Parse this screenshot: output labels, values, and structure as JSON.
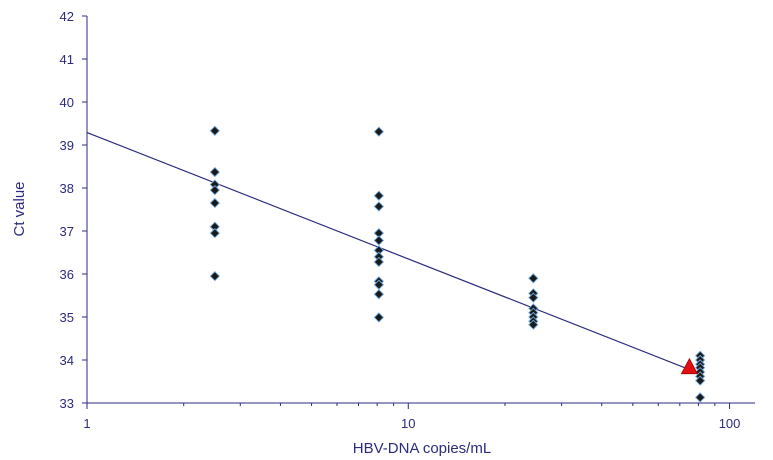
{
  "chart_data": {
    "type": "scatter",
    "title": "",
    "xlabel": "HBV-DNA copies/mL",
    "ylabel": "Ct value",
    "x_scale": "log",
    "xlim": [
      1,
      120
    ],
    "ylim": [
      33,
      42
    ],
    "x_ticks": [
      1,
      10,
      100
    ],
    "x_tick_labels": [
      "1",
      "10",
      "100"
    ],
    "y_ticks": [
      33,
      34,
      35,
      36,
      37,
      38,
      39,
      40,
      41,
      42
    ],
    "y_tick_labels": [
      "33",
      "34",
      "35",
      "36",
      "37",
      "38",
      "39",
      "40",
      "41",
      "42"
    ],
    "grid": false,
    "colors": {
      "axis": "#2b2b80",
      "marker": "#1a1a1a",
      "marker_edge": "#6fa8dc",
      "trend": "#2b2b80",
      "highlight": "#e01010"
    },
    "series": [
      {
        "marker": "diamond",
        "points": [
          {
            "x": 2.5,
            "y": 39.33
          },
          {
            "x": 2.5,
            "y": 38.37
          },
          {
            "x": 2.5,
            "y": 38.08
          },
          {
            "x": 2.5,
            "y": 37.95
          },
          {
            "x": 2.5,
            "y": 37.65
          },
          {
            "x": 2.5,
            "y": 37.1
          },
          {
            "x": 2.5,
            "y": 36.95
          },
          {
            "x": 2.5,
            "y": 35.95
          },
          {
            "x": 8.1,
            "y": 39.31
          },
          {
            "x": 8.1,
            "y": 37.82
          },
          {
            "x": 8.1,
            "y": 37.57
          },
          {
            "x": 8.1,
            "y": 36.95
          },
          {
            "x": 8.1,
            "y": 36.78
          },
          {
            "x": 8.1,
            "y": 36.55
          },
          {
            "x": 8.1,
            "y": 36.4
          },
          {
            "x": 8.1,
            "y": 36.28
          },
          {
            "x": 8.1,
            "y": 35.83
          },
          {
            "x": 8.1,
            "y": 35.75
          },
          {
            "x": 8.1,
            "y": 35.53
          },
          {
            "x": 8.1,
            "y": 34.99
          },
          {
            "x": 24.5,
            "y": 35.9
          },
          {
            "x": 24.5,
            "y": 35.55
          },
          {
            "x": 24.5,
            "y": 35.45
          },
          {
            "x": 24.5,
            "y": 35.2
          },
          {
            "x": 24.5,
            "y": 35.1
          },
          {
            "x": 24.5,
            "y": 35.0
          },
          {
            "x": 24.5,
            "y": 34.9
          },
          {
            "x": 24.5,
            "y": 34.82
          },
          {
            "x": 81,
            "y": 34.1
          },
          {
            "x": 81,
            "y": 34.0
          },
          {
            "x": 81,
            "y": 33.9
          },
          {
            "x": 81,
            "y": 33.82
          },
          {
            "x": 81,
            "y": 33.72
          },
          {
            "x": 81,
            "y": 33.62
          },
          {
            "x": 81,
            "y": 33.52
          },
          {
            "x": 81,
            "y": 33.13
          }
        ]
      },
      {
        "marker": "triangle",
        "points": [
          {
            "x": 75,
            "y": 33.82
          }
        ]
      }
    ],
    "trendline": {
      "type": "log-linear",
      "points": [
        {
          "x": 1,
          "y": 39.29
        },
        {
          "x": 81,
          "y": 33.68
        }
      ]
    }
  }
}
